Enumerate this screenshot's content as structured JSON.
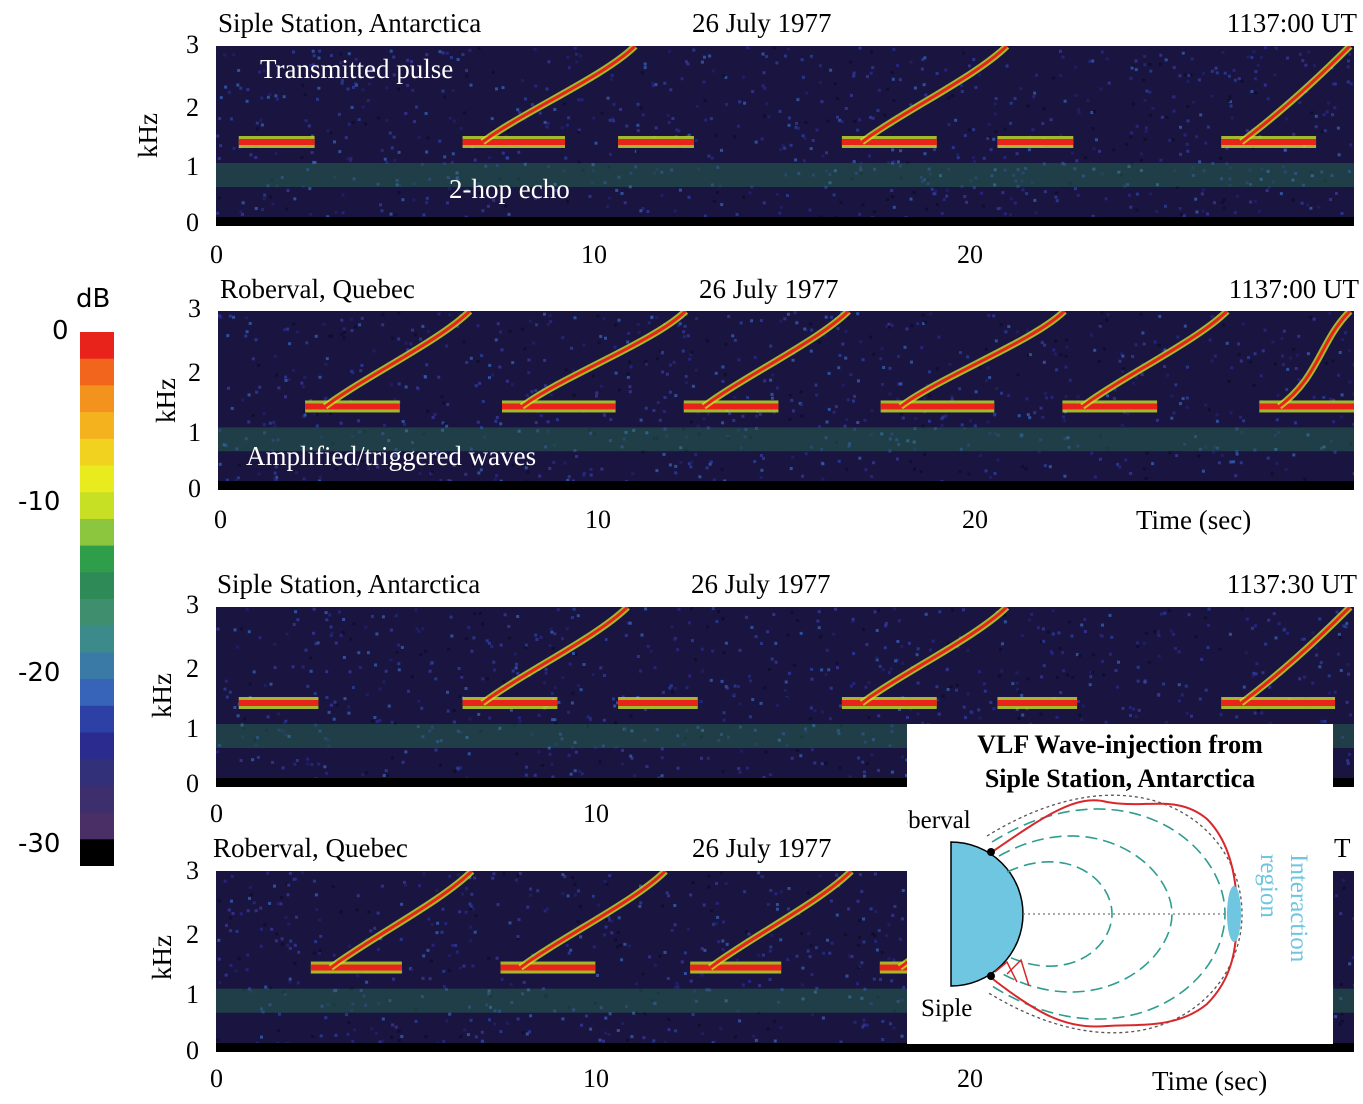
{
  "chart_data": [
    {
      "type": "heatmap",
      "station": "Siple Station, Antarctica",
      "date": "26 July 1977",
      "time": "1137:00 UT",
      "ylabel": "kHz",
      "ylim": [
        0,
        3
      ],
      "yticks": [
        "0",
        "1",
        "2",
        "3"
      ],
      "xlim": [
        0,
        30
      ],
      "xticks": [
        "0",
        "10",
        "20"
      ],
      "xlabel": "",
      "annotations": [
        "Transmitted pulse",
        "2-hop echo"
      ],
      "traces": [
        {
          "t0": 0.6,
          "t1": 2.6,
          "f": 1.4
        },
        {
          "t0": 6.5,
          "t1": 9.2,
          "f": 1.4
        },
        {
          "t0": 10.6,
          "t1": 12.6,
          "f": 1.4
        },
        {
          "t0": 16.5,
          "t1": 19.0,
          "f": 1.4
        },
        {
          "t0": 20.6,
          "t1": 22.6,
          "f": 1.4
        },
        {
          "t0": 26.5,
          "t1": 29.0,
          "f": 1.4
        }
      ]
    },
    {
      "type": "heatmap",
      "station": "Roberval, Quebec",
      "date": "26 July 1977",
      "time": "1137:00 UT",
      "ylabel": "kHz",
      "ylim": [
        0,
        3
      ],
      "yticks": [
        "0",
        "1",
        "2",
        "3"
      ],
      "xlim": [
        0,
        30
      ],
      "xticks": [
        "0",
        "10",
        "20"
      ],
      "xlabel": "Time (sec)",
      "annotations": [
        "Amplified/triggered waves"
      ],
      "traces": [
        {
          "t0": 2.3,
          "t1": 4.8,
          "f": 1.4
        },
        {
          "t0": 7.5,
          "t1": 10.5,
          "f": 1.4
        },
        {
          "t0": 12.3,
          "t1": 14.8,
          "f": 1.4
        },
        {
          "t0": 17.5,
          "t1": 20.5,
          "f": 1.4
        },
        {
          "t0": 22.3,
          "t1": 24.8,
          "f": 1.4
        },
        {
          "t0": 27.5,
          "t1": 30.0,
          "f": 1.4
        }
      ]
    },
    {
      "type": "heatmap",
      "station": "Siple Station, Antarctica",
      "date": "26 July 1977",
      "time": "1137:30 UT",
      "ylabel": "kHz",
      "ylim": [
        0,
        3
      ],
      "yticks": [
        "0",
        "1",
        "2",
        "3"
      ],
      "xlim": [
        0,
        30
      ],
      "xticks": [
        "0",
        "10"
      ],
      "xlabel": "",
      "annotations": [],
      "traces": [
        {
          "t0": 0.6,
          "t1": 2.7,
          "f": 1.4
        },
        {
          "t0": 6.5,
          "t1": 9.0,
          "f": 1.4
        },
        {
          "t0": 10.6,
          "t1": 12.7,
          "f": 1.4
        },
        {
          "t0": 16.5,
          "t1": 19.0,
          "f": 1.4
        },
        {
          "t0": 20.6,
          "t1": 22.7,
          "f": 1.4
        },
        {
          "t0": 26.5,
          "t1": 29.5,
          "f": 1.4
        }
      ]
    },
    {
      "type": "heatmap",
      "station": "Roberval, Quebec",
      "date": "26 July 1977",
      "time": "T",
      "ylabel": "kHz",
      "ylim": [
        0,
        3
      ],
      "yticks": [
        "0",
        "1",
        "2",
        "3"
      ],
      "xlim": [
        0,
        30
      ],
      "xticks": [
        "0",
        "10",
        "20"
      ],
      "xlabel": "Time (sec)",
      "annotations": [],
      "traces": [
        {
          "t0": 2.5,
          "t1": 4.9,
          "f": 1.4
        },
        {
          "t0": 7.5,
          "t1": 10.0,
          "f": 1.4
        },
        {
          "t0": 12.5,
          "t1": 14.9,
          "f": 1.4
        },
        {
          "t0": 17.5,
          "t1": 20.0,
          "f": 1.4
        }
      ]
    }
  ],
  "colorbar": {
    "unit": "dB",
    "ticks": [
      "0",
      "-10",
      "-20",
      "-30"
    ],
    "range": [
      -30,
      0
    ],
    "colors": [
      "#e8231c",
      "#f1651c",
      "#f3921d",
      "#f3b21e",
      "#f1d21f",
      "#e8ec1e",
      "#c8e024",
      "#8cc63e",
      "#2f9e4a",
      "#2e8b57",
      "#3f8e6d",
      "#3d8a8a",
      "#3a7aa6",
      "#3763b8",
      "#2c40a6",
      "#2a2a8f",
      "#33307a",
      "#3d2e6e",
      "#4a2f66",
      "#000000"
    ]
  },
  "inset": {
    "title_line1": "VLF Wave-injection from",
    "title_line2": "Siple Station, Antarctica",
    "label_roberval": "Roberval",
    "label_siple": "Siple",
    "label_interaction": "Interaction",
    "label_region": "region",
    "earth_color": "#6ec6e0",
    "wave_color": "#d8282c",
    "field_line_color": "#2e9d8f"
  }
}
